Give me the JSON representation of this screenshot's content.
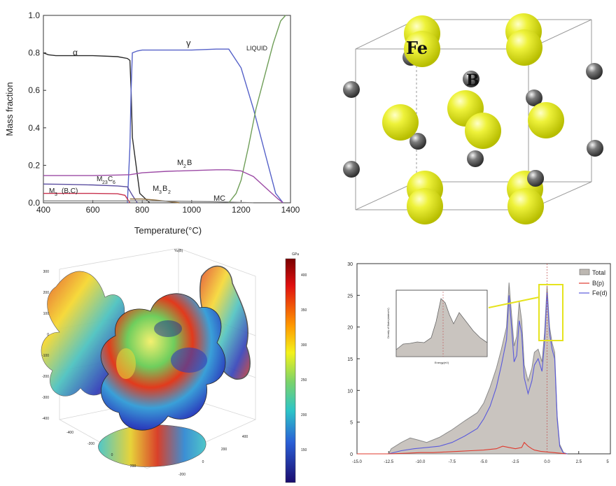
{
  "phase_chart": {
    "type": "line",
    "xlabel": "Temperature(°C)",
    "ylabel": "Mass fraction",
    "xlim": [
      400,
      1400
    ],
    "ylim": [
      0.0,
      1.0
    ],
    "xticks": [
      "400",
      "600",
      "800",
      "1000",
      "1200",
      "1400"
    ],
    "yticks": [
      "0.0",
      "0.2",
      "0.4",
      "0.6",
      "0.8",
      "1.0"
    ],
    "series": [
      {
        "name": "α",
        "color": "#2a2a2a",
        "x": [
          400,
          420,
          450,
          500,
          600,
          700,
          740,
          750,
          755,
          760,
          790,
          830
        ],
        "y": [
          0.8,
          0.79,
          0.785,
          0.785,
          0.785,
          0.78,
          0.77,
          0.76,
          0.6,
          0.35,
          0.05,
          0.0
        ]
      },
      {
        "name": "γ",
        "color": "#5561c8",
        "x": [
          740,
          750,
          755,
          760,
          780,
          800,
          900,
          1000,
          1100,
          1150,
          1200,
          1250,
          1300,
          1340,
          1370
        ],
        "y": [
          0.0,
          0.3,
          0.6,
          0.8,
          0.81,
          0.815,
          0.815,
          0.815,
          0.82,
          0.82,
          0.72,
          0.5,
          0.25,
          0.05,
          0.0
        ]
      },
      {
        "name": "LIQUID",
        "color": "#6f9e58",
        "x": [
          1150,
          1180,
          1200,
          1230,
          1260,
          1300,
          1330,
          1360,
          1380
        ],
        "y": [
          0.0,
          0.05,
          0.12,
          0.3,
          0.5,
          0.7,
          0.85,
          0.97,
          1.0
        ]
      },
      {
        "name": "M2B",
        "color": "#9c4aa5",
        "x": [
          400,
          500,
          600,
          700,
          750,
          800,
          900,
          1000,
          1100,
          1150,
          1200,
          1250,
          1300,
          1350,
          1370
        ],
        "y": [
          0.145,
          0.145,
          0.145,
          0.148,
          0.15,
          0.16,
          0.168,
          0.172,
          0.176,
          0.176,
          0.17,
          0.14,
          0.08,
          0.02,
          0.0
        ]
      },
      {
        "name": "M23C6",
        "color": "#5a4ea0",
        "x": [
          400,
          500,
          600,
          700,
          740,
          760,
          780
        ],
        "y": [
          0.1,
          0.098,
          0.095,
          0.09,
          0.085,
          0.04,
          0.0
        ]
      },
      {
        "name": "M3B2",
        "color": "#8b6a3a",
        "x": [
          750,
          800,
          850,
          900,
          950
        ],
        "y": [
          0.02,
          0.02,
          0.015,
          0.008,
          0.0
        ]
      },
      {
        "name": "M3(B,C)",
        "color": "#c8324e",
        "x": [
          400,
          500,
          600,
          700,
          730,
          750
        ],
        "y": [
          0.05,
          0.05,
          0.05,
          0.048,
          0.04,
          0.0
        ]
      },
      {
        "name": "MC",
        "color": "#888888",
        "x": [
          400,
          600,
          800,
          1000,
          1100,
          1150,
          1200,
          1250
        ],
        "y": [
          0.01,
          0.01,
          0.01,
          0.008,
          0.006,
          0.004,
          0.002,
          0.0
        ]
      }
    ],
    "labels": {
      "alpha": "α",
      "gamma": "γ",
      "liquid": "LIQUID",
      "m2b_main": "M",
      "m2b_sub": "2",
      "m2b_tail": "B",
      "m23_main": "M",
      "m23_sub": "23",
      "m23_tail": "C",
      "m23_sub2": "6",
      "m3bc_main": "M",
      "m3bc_sub": "3",
      "m3bc_tail": "(B,C)",
      "m3b2_main": "M",
      "m3b2_sub": "3",
      "m3b2_tail": "B",
      "m3b2_sub2": "2",
      "mc": "MC"
    }
  },
  "crystal": {
    "fe_label": "Fe",
    "b_label": "B",
    "fe_color": "#e6ec1e",
    "b_color": "#555555"
  },
  "surface_plot": {
    "colorbar_label": "GPa",
    "top_label": "Yu(B)",
    "left_ticks": [
      "300",
      "200",
      "100",
      "0",
      "-100",
      "-200",
      "-300",
      "-400"
    ],
    "bottom_left_ticks": [
      "-400",
      "-200",
      "0",
      "200"
    ],
    "bottom_right_ticks": [
      "-200",
      "0",
      "200",
      "400"
    ],
    "colorbar_ticks": [
      "400",
      "350",
      "300",
      "250",
      "200",
      "150"
    ]
  },
  "dos_chart": {
    "type": "area",
    "xlim": [
      -15.0,
      5.0
    ],
    "ylim": [
      0,
      30
    ],
    "xticks": [
      "-15.0",
      "-12.5",
      "-10.0",
      "-7.5",
      "-5.0",
      "-2.5",
      "0.0",
      "2.5",
      "5"
    ],
    "yticks": [
      "0",
      "5",
      "10",
      "15",
      "20",
      "25",
      "30"
    ],
    "legend": [
      "Total",
      "B(p)",
      "Fe(d)"
    ],
    "inset_xlabel": "Energy(eV)",
    "inset_ylabel": "Density of States(states/eV)",
    "series": [
      {
        "name": "Total",
        "color": "#8a8a8a",
        "fill": "#c9c4bf",
        "x": [
          -15,
          -12.5,
          -12.3,
          -11.5,
          -10.8,
          -10.2,
          -9.5,
          -8.5,
          -7.5,
          -6.5,
          -5.5,
          -5.0,
          -4.5,
          -4.0,
          -3.6,
          -3.2,
          -3.0,
          -2.8,
          -2.6,
          -2.4,
          -2.2,
          -2.0,
          -1.8,
          -1.5,
          -1.2,
          -1.0,
          -0.7,
          -0.4,
          -0.2,
          0.0,
          0.2,
          0.4,
          0.6,
          0.8,
          1.0,
          1.3,
          1.6
        ],
        "y": [
          0,
          0,
          0.8,
          1.8,
          2.5,
          2.2,
          1.8,
          2.6,
          3.8,
          5.2,
          6.5,
          8.0,
          10.5,
          13.5,
          16.5,
          20.0,
          27.0,
          22.0,
          17.0,
          18.5,
          24.0,
          21.0,
          14.0,
          11.5,
          13.5,
          16.0,
          16.5,
          14.5,
          19.0,
          26.5,
          20.0,
          17.5,
          16.0,
          6.0,
          1.5,
          0.2,
          0
        ]
      },
      {
        "name": "Fe(d)",
        "color": "#5a5adc",
        "x": [
          -15,
          -12.5,
          -11.5,
          -10.5,
          -9.5,
          -8.5,
          -7.5,
          -6.5,
          -5.5,
          -5.0,
          -4.5,
          -4.0,
          -3.6,
          -3.2,
          -3.0,
          -2.8,
          -2.6,
          -2.4,
          -2.2,
          -2.0,
          -1.8,
          -1.5,
          -1.2,
          -1.0,
          -0.7,
          -0.4,
          -0.2,
          0.0,
          0.2,
          0.4,
          0.6,
          0.8,
          1.0,
          1.3,
          1.6
        ],
        "y": [
          0,
          0,
          0.5,
          0.8,
          1.0,
          1.2,
          1.8,
          2.8,
          4.0,
          5.5,
          7.5,
          10.5,
          14.0,
          18.0,
          25.0,
          20.0,
          14.5,
          15.5,
          21.0,
          19.0,
          12.0,
          9.5,
          11.5,
          14.0,
          15.0,
          13.0,
          17.5,
          25.5,
          19.0,
          16.5,
          15.0,
          5.5,
          1.2,
          0.1,
          0
        ]
      },
      {
        "name": "B(p)",
        "color": "#e03a2e",
        "x": [
          -15,
          -12.5,
          -11,
          -10,
          -9,
          -8,
          -7,
          -6,
          -5,
          -4,
          -3.5,
          -3,
          -2.5,
          -2,
          -1.8,
          -1.5,
          -1.2,
          -1.0,
          -0.5,
          0,
          0.5,
          1.0,
          1.5
        ],
        "y": [
          0,
          0,
          0.1,
          0.2,
          0.2,
          0.3,
          0.4,
          0.5,
          0.6,
          0.8,
          1.2,
          1.0,
          0.8,
          1.0,
          1.8,
          1.2,
          0.8,
          0.6,
          0.4,
          0.3,
          0.2,
          0.1,
          0
        ]
      }
    ]
  }
}
